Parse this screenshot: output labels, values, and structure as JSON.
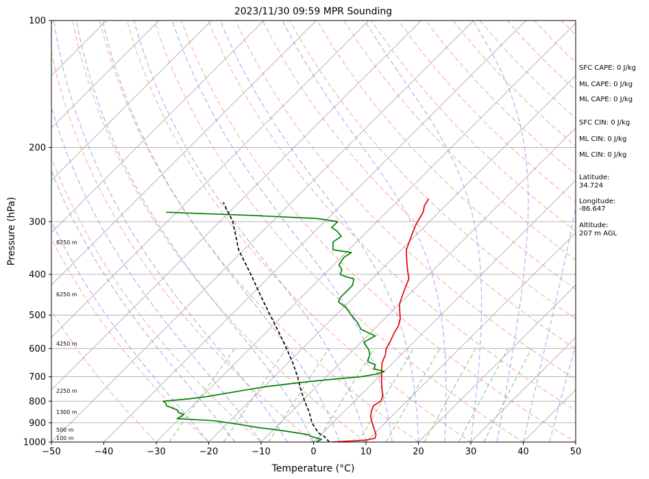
{
  "chart_data": {
    "type": "line",
    "title": "2023/11/30 09:59 MPR Sounding",
    "xlabel": "Temperature (°C)",
    "ylabel": "Pressure (hPa)",
    "xlim": [
      -50,
      50
    ],
    "ylim": [
      1000,
      100
    ],
    "y_scale": "log",
    "x_ticks": [
      -50,
      -40,
      -30,
      -20,
      -10,
      0,
      10,
      20,
      30,
      40,
      50
    ],
    "y_ticks": [
      100,
      200,
      300,
      400,
      500,
      600,
      700,
      800,
      900,
      1000
    ],
    "grid": "horizontal pressure lines",
    "skew": "skew-T log-p",
    "series": [
      {
        "name": "",
        "color": "#e60000",
        "points": [
          [
            3.5,
            1000
          ],
          [
            9.5,
            990
          ],
          [
            11.0,
            980
          ],
          [
            10.5,
            960
          ],
          [
            9.0,
            930
          ],
          [
            7.5,
            900
          ],
          [
            6.0,
            870
          ],
          [
            5.0,
            840
          ],
          [
            4.5,
            820
          ],
          [
            5.0,
            800
          ],
          [
            4.5,
            780
          ],
          [
            3.0,
            750
          ],
          [
            1.5,
            720
          ],
          [
            0.5,
            700
          ],
          [
            -0.5,
            680
          ],
          [
            -2.0,
            650
          ],
          [
            -3.0,
            620
          ],
          [
            -4.0,
            600
          ],
          [
            -4.5,
            580
          ],
          [
            -5.5,
            550
          ],
          [
            -6.0,
            530
          ],
          [
            -7.0,
            510
          ],
          [
            -8.5,
            490
          ],
          [
            -10.0,
            470
          ],
          [
            -11.0,
            450
          ],
          [
            -12.0,
            430
          ],
          [
            -13.0,
            410
          ],
          [
            -14.5,
            395
          ],
          [
            -16.0,
            380
          ],
          [
            -17.5,
            365
          ],
          [
            -19.0,
            350
          ],
          [
            -20.0,
            335
          ],
          [
            -21.0,
            320
          ],
          [
            -22.0,
            305
          ],
          [
            -22.5,
            295
          ],
          [
            -23.0,
            285
          ],
          [
            -24.0,
            275
          ],
          [
            -24.5,
            265
          ]
        ]
      },
      {
        "name": "",
        "color": "#008000",
        "points": [
          [
            0.5,
            1000
          ],
          [
            1.0,
            985
          ],
          [
            -1.5,
            970
          ],
          [
            -2.5,
            960
          ],
          [
            -8.0,
            940
          ],
          [
            -13.0,
            925
          ],
          [
            -17.0,
            910
          ],
          [
            -23.0,
            890
          ],
          [
            -30.5,
            880
          ],
          [
            -30.0,
            860
          ],
          [
            -31.5,
            850
          ],
          [
            -32.0,
            840
          ],
          [
            -33.5,
            830
          ],
          [
            -35.0,
            820
          ],
          [
            -35.5,
            810
          ],
          [
            -36.5,
            800
          ],
          [
            -32.0,
            790
          ],
          [
            -29.0,
            780
          ],
          [
            -20.0,
            740
          ],
          [
            -13.0,
            720
          ],
          [
            -8.5,
            710
          ],
          [
            -3.5,
            700
          ],
          [
            -1.0,
            690
          ],
          [
            0.0,
            680
          ],
          [
            -2.5,
            670
          ],
          [
            -3.0,
            655
          ],
          [
            -5.0,
            645
          ],
          [
            -6.0,
            620
          ],
          [
            -7.0,
            605
          ],
          [
            -9.5,
            580
          ],
          [
            -8.5,
            560
          ],
          [
            -10.5,
            550
          ],
          [
            -12.5,
            540
          ],
          [
            -14.5,
            520
          ],
          [
            -17.0,
            500
          ],
          [
            -19.5,
            480
          ],
          [
            -22.0,
            465
          ],
          [
            -22.5,
            455
          ],
          [
            -22.5,
            440
          ],
          [
            -22.5,
            425
          ],
          [
            -23.5,
            410
          ],
          [
            -25.5,
            405
          ],
          [
            -27.0,
            400
          ],
          [
            -27.5,
            390
          ],
          [
            -29.0,
            380
          ],
          [
            -29.5,
            365
          ],
          [
            -29.0,
            355
          ],
          [
            -33.0,
            350
          ],
          [
            -34.5,
            335
          ],
          [
            -34.0,
            325
          ],
          [
            -36.0,
            315
          ],
          [
            -37.5,
            310
          ],
          [
            -37.5,
            300
          ],
          [
            -42.0,
            295
          ],
          [
            -55.0,
            290
          ],
          [
            -72.0,
            285
          ]
        ]
      },
      {
        "name": "",
        "color": "#000000",
        "style": "dashed",
        "points": [
          [
            3.0,
            1000
          ],
          [
            1.0,
            970
          ],
          [
            -0.5,
            955
          ],
          [
            -1.5,
            940
          ],
          [
            -4.0,
            900
          ],
          [
            -6.5,
            850
          ],
          [
            -9.5,
            800
          ],
          [
            -12.5,
            750
          ],
          [
            -15.5,
            700
          ],
          [
            -19.0,
            650
          ],
          [
            -23.0,
            600
          ],
          [
            -27.5,
            550
          ],
          [
            -32.5,
            500
          ],
          [
            -38.0,
            450
          ],
          [
            -44.0,
            400
          ],
          [
            -51.0,
            350
          ],
          [
            -57.5,
            300
          ],
          [
            -63.0,
            270
          ]
        ]
      }
    ],
    "height_labels": [
      "100 m",
      "500 m",
      "1300 m",
      "2250 m",
      "4250 m",
      "6250 m",
      "8250 m"
    ],
    "background_line_colors": {
      "isotherm": "#aaaaaa",
      "dry_adiabat": "#ff9999",
      "moist_adiabat": "#9999ff",
      "mixing_ratio": "#66bb66"
    }
  },
  "side_panel": [
    "SFC CAPE: 0 J/kg",
    "ML CAPE: 0 J/kg",
    "ML CAPE: 0 J/kg",
    "SFC CIN: 0 J/kg",
    "ML CIN: 0 J/kg",
    "ML CIN: 0 J/kg",
    "Latitude:",
    "34.724",
    "Longitude:",
    "-86.647",
    "Altitude:",
    "207 m AGL"
  ]
}
